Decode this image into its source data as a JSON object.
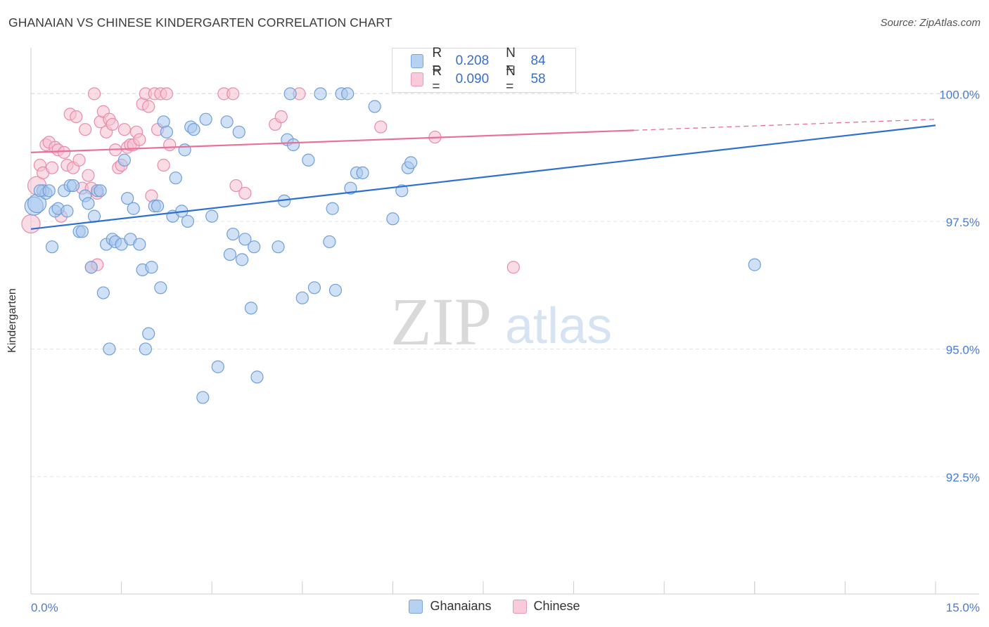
{
  "title": "GHANAIAN VS CHINESE KINDERGARTEN CORRELATION CHART",
  "source": "Source: ZipAtlas.com",
  "watermark": {
    "zip": "ZIP",
    "atlas": "atlas"
  },
  "colors": {
    "blue_fill": "#a9c8ef",
    "blue_stroke": "#6f9fd8",
    "blue_line": "#2f6fd0",
    "pink_fill": "#f6bfd0",
    "pink_stroke": "#e98bab",
    "pink_line": "#e8709a",
    "tick_label": "#4a7cd0",
    "grid": "#e3e3e3"
  },
  "legend_top": {
    "rows": [
      {
        "series": "Ghanaians",
        "r_label": "R =",
        "r_value": "0.208",
        "n_label": "N =",
        "n_value": "84"
      },
      {
        "series": "Chinese",
        "r_label": "R =",
        "r_value": "0.090",
        "n_label": "N =",
        "n_value": "58"
      }
    ]
  },
  "legend_bottom": [
    "Ghanaians",
    "Chinese"
  ],
  "chart_data": {
    "type": "scatter",
    "title": "GHANAIAN VS CHINESE KINDERGARTEN CORRELATION CHART",
    "xlabel": "",
    "ylabel": "Kindergarten",
    "xlim": [
      0.0,
      15.0
    ],
    "ylim": [
      90.2,
      100.9
    ],
    "x_tick_labels": [
      {
        "value": 0.0,
        "label": "0.0%"
      },
      {
        "value": 15.0,
        "label": "15.0%"
      }
    ],
    "y_ticks": [
      {
        "value": 100.0,
        "label": "100.0%"
      },
      {
        "value": 97.5,
        "label": "97.5%"
      },
      {
        "value": 95.0,
        "label": "95.0%"
      },
      {
        "value": 92.5,
        "label": "92.5%"
      }
    ],
    "grid": true,
    "series": [
      {
        "name": "Ghanaians",
        "r": 0.208,
        "n": 84,
        "trend": {
          "x": [
            0.0,
            15.0
          ],
          "y": [
            97.35,
            99.38
          ],
          "dashed_from": null
        },
        "points": [
          [
            0.05,
            97.8
          ],
          [
            0.1,
            97.85
          ],
          [
            0.2,
            98.1
          ],
          [
            0.25,
            98.05
          ],
          [
            0.35,
            97.0
          ],
          [
            0.4,
            97.7
          ],
          [
            0.45,
            97.75
          ],
          [
            0.55,
            98.1
          ],
          [
            0.6,
            97.7
          ],
          [
            0.65,
            98.2
          ],
          [
            0.8,
            97.3
          ],
          [
            0.85,
            97.3
          ],
          [
            0.9,
            98.0
          ],
          [
            0.95,
            97.85
          ],
          [
            1.0,
            96.6
          ],
          [
            1.05,
            97.6
          ],
          [
            1.1,
            98.1
          ],
          [
            1.2,
            96.1
          ],
          [
            1.25,
            97.05
          ],
          [
            1.3,
            95.0
          ],
          [
            1.35,
            97.15
          ],
          [
            1.4,
            97.1
          ],
          [
            1.5,
            97.05
          ],
          [
            1.55,
            98.7
          ],
          [
            1.6,
            97.95
          ],
          [
            1.65,
            97.15
          ],
          [
            1.7,
            97.75
          ],
          [
            1.8,
            97.05
          ],
          [
            1.85,
            96.55
          ],
          [
            1.9,
            95.0
          ],
          [
            1.95,
            95.3
          ],
          [
            2.0,
            96.6
          ],
          [
            2.05,
            97.8
          ],
          [
            2.15,
            96.2
          ],
          [
            2.2,
            99.45
          ],
          [
            2.25,
            99.25
          ],
          [
            2.35,
            97.6
          ],
          [
            2.4,
            98.35
          ],
          [
            2.5,
            97.7
          ],
          [
            2.55,
            98.9
          ],
          [
            2.6,
            97.5
          ],
          [
            2.65,
            99.35
          ],
          [
            2.7,
            99.3
          ],
          [
            2.85,
            94.05
          ],
          [
            2.9,
            99.5
          ],
          [
            3.0,
            97.6
          ],
          [
            3.1,
            94.65
          ],
          [
            3.25,
            99.45
          ],
          [
            3.3,
            96.85
          ],
          [
            3.35,
            97.25
          ],
          [
            3.45,
            99.25
          ],
          [
            3.5,
            96.75
          ],
          [
            3.55,
            97.15
          ],
          [
            3.65,
            95.8
          ],
          [
            3.7,
            97.0
          ],
          [
            3.75,
            94.45
          ],
          [
            4.1,
            97.0
          ],
          [
            4.2,
            97.9
          ],
          [
            4.25,
            99.1
          ],
          [
            4.3,
            100.0
          ],
          [
            4.5,
            96.0
          ],
          [
            4.6,
            98.7
          ],
          [
            4.7,
            96.2
          ],
          [
            4.8,
            100.0
          ],
          [
            4.95,
            97.1
          ],
          [
            5.0,
            97.75
          ],
          [
            5.05,
            96.15
          ],
          [
            5.15,
            100.0
          ],
          [
            5.25,
            100.0
          ],
          [
            5.3,
            98.15
          ],
          [
            5.4,
            98.45
          ],
          [
            5.5,
            98.45
          ],
          [
            5.7,
            99.75
          ],
          [
            6.0,
            97.55
          ],
          [
            6.15,
            98.1
          ],
          [
            6.25,
            98.55
          ],
          [
            6.3,
            98.65
          ],
          [
            12.0,
            96.65
          ],
          [
            0.15,
            98.1
          ],
          [
            0.3,
            98.1
          ],
          [
            0.7,
            98.2
          ],
          [
            1.15,
            98.1
          ],
          [
            2.1,
            97.8
          ],
          [
            4.35,
            99.0
          ]
        ]
      },
      {
        "name": "Chinese",
        "r": 0.09,
        "n": 58,
        "trend": {
          "x": [
            0.0,
            15.0
          ],
          "y": [
            98.85,
            99.5
          ],
          "dashed_from": 10.0
        },
        "points": [
          [
            0.0,
            97.45
          ],
          [
            0.1,
            98.2
          ],
          [
            0.15,
            98.6
          ],
          [
            0.2,
            98.45
          ],
          [
            0.25,
            99.0
          ],
          [
            0.3,
            99.05
          ],
          [
            0.35,
            98.55
          ],
          [
            0.4,
            98.95
          ],
          [
            0.45,
            98.9
          ],
          [
            0.5,
            97.6
          ],
          [
            0.55,
            98.85
          ],
          [
            0.6,
            98.6
          ],
          [
            0.65,
            99.6
          ],
          [
            0.7,
            98.55
          ],
          [
            0.75,
            99.55
          ],
          [
            0.8,
            98.7
          ],
          [
            0.85,
            98.15
          ],
          [
            0.9,
            99.3
          ],
          [
            0.95,
            98.4
          ],
          [
            1.0,
            98.15
          ],
          [
            1.05,
            100.0
          ],
          [
            1.1,
            98.05
          ],
          [
            1.15,
            99.45
          ],
          [
            1.2,
            99.65
          ],
          [
            1.25,
            99.25
          ],
          [
            1.3,
            99.5
          ],
          [
            1.35,
            99.4
          ],
          [
            1.4,
            98.9
          ],
          [
            1.45,
            98.55
          ],
          [
            1.5,
            98.6
          ],
          [
            1.55,
            99.3
          ],
          [
            1.6,
            98.95
          ],
          [
            1.65,
            99.0
          ],
          [
            1.7,
            99.0
          ],
          [
            1.75,
            99.25
          ],
          [
            1.8,
            99.1
          ],
          [
            1.85,
            99.8
          ],
          [
            1.9,
            100.0
          ],
          [
            1.95,
            99.75
          ],
          [
            2.0,
            98.0
          ],
          [
            2.05,
            100.0
          ],
          [
            2.1,
            99.3
          ],
          [
            2.15,
            100.0
          ],
          [
            2.2,
            98.6
          ],
          [
            2.25,
            100.0
          ],
          [
            2.3,
            99.0
          ],
          [
            3.2,
            100.0
          ],
          [
            3.35,
            100.0
          ],
          [
            3.4,
            98.2
          ],
          [
            3.55,
            98.05
          ],
          [
            4.05,
            99.4
          ],
          [
            4.15,
            99.55
          ],
          [
            4.45,
            100.0
          ],
          [
            5.8,
            99.35
          ],
          [
            6.7,
            99.15
          ],
          [
            8.0,
            96.6
          ],
          [
            1.0,
            96.6
          ],
          [
            1.1,
            96.65
          ]
        ]
      }
    ]
  }
}
